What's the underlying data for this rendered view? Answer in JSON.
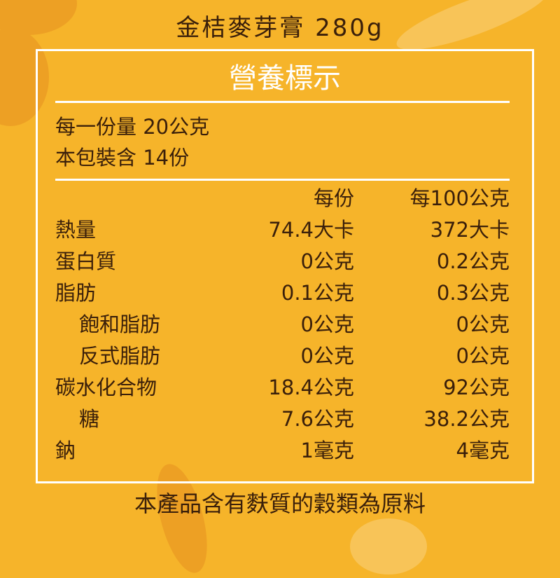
{
  "colors": {
    "background": "#f6b42a",
    "text": "#3a1f0a",
    "accent": "#ffffff"
  },
  "title": "金桔麥芽膏  280g",
  "label": {
    "heading": "營養標示",
    "serving_size": "每一份量 20公克",
    "servings_per_package": "本包裝含 14份",
    "columns": [
      "每份",
      "每100公克"
    ],
    "rows": [
      {
        "name": "熱量",
        "per_serving": "74.4大卡",
        "per_100g": "372大卡",
        "indent": false
      },
      {
        "name": "蛋白質",
        "per_serving": "0公克",
        "per_100g": "0.2公克",
        "indent": false
      },
      {
        "name": "脂肪",
        "per_serving": "0.1公克",
        "per_100g": "0.3公克",
        "indent": false
      },
      {
        "name": "飽和脂肪",
        "per_serving": "0公克",
        "per_100g": "0公克",
        "indent": true
      },
      {
        "name": "反式脂肪",
        "per_serving": "0公克",
        "per_100g": "0公克",
        "indent": true
      },
      {
        "name": "碳水化合物",
        "per_serving": "18.4公克",
        "per_100g": "92公克",
        "indent": false
      },
      {
        "name": "糖",
        "per_serving": "7.6公克",
        "per_100g": "38.2公克",
        "indent": true
      },
      {
        "name": "鈉",
        "per_serving": "1毫克",
        "per_100g": "4毫克",
        "indent": false
      }
    ]
  },
  "footer": "本產品含有麩質的穀類為原料"
}
